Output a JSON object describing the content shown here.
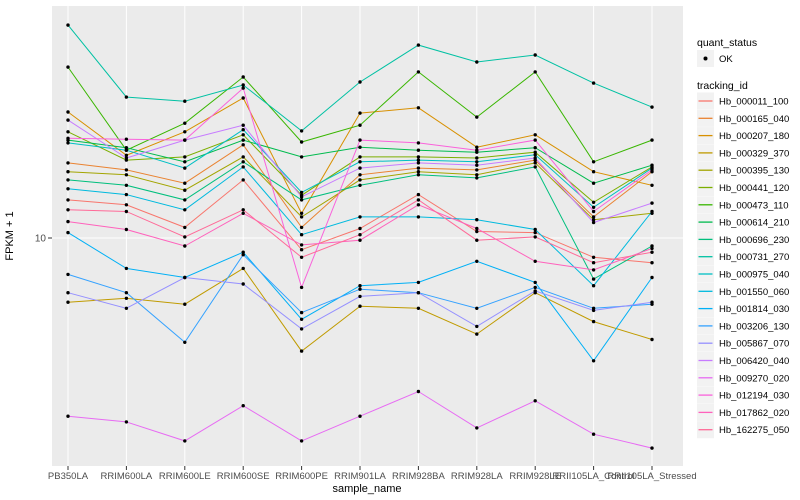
{
  "chart_data": {
    "type": "line",
    "title": "",
    "xlabel": "sample_name",
    "ylabel": "FPKM + 1",
    "y_scale": "log10",
    "y_tick_labels": [
      "10"
    ],
    "y_tick_values": [
      10
    ],
    "ylim": [
      1.4,
      75
    ],
    "grid": "major-only",
    "legend_position": "right",
    "categories": [
      "PB350LA",
      "RRIM600LA",
      "RRIM600LE",
      "RRIM600SE",
      "RRIM600PE",
      "RRIM901LA",
      "RRIM928BA",
      "RRIM928LA",
      "RRIM928LE",
      "RRII105LA_Control",
      "RRII105LA_Stressed"
    ],
    "series": [
      {
        "name": "Hb_000011_100",
        "color": "#F8766D",
        "values": [
          14.1,
          13.5,
          11.0,
          16.9,
          9.0,
          10.9,
          14.8,
          10.6,
          10.5,
          8.4,
          8.0
        ]
      },
      {
        "name": "Hb_000165_040",
        "color": "#EA8331",
        "values": [
          19.7,
          18.5,
          16.4,
          23.2,
          11.0,
          17.7,
          18.8,
          18.5,
          20.2,
          12.1,
          18.2
        ]
      },
      {
        "name": "Hb_000207_180",
        "color": "#D89000",
        "values": [
          31.2,
          21.1,
          26.1,
          35.4,
          12.5,
          30.9,
          32.4,
          22.7,
          25.4,
          18.2,
          16.1
        ]
      },
      {
        "name": "Hb_000329_370",
        "color": "#C09B00",
        "values": [
          5.6,
          5.8,
          5.5,
          7.6,
          3.6,
          5.4,
          5.3,
          4.2,
          6.1,
          4.7,
          4.0
        ]
      },
      {
        "name": "Hb_000395_130",
        "color": "#A3A500",
        "values": [
          18.2,
          17.7,
          15.4,
          20.8,
          12.1,
          16.9,
          18.2,
          17.7,
          19.7,
          11.8,
          12.5
        ]
      },
      {
        "name": "Hb_000441_120",
        "color": "#7CAE00",
        "values": [
          26.1,
          20.2,
          20.8,
          25.4,
          14.7,
          20.8,
          20.8,
          20.6,
          21.7,
          13.8,
          19.0
        ]
      },
      {
        "name": "Hb_000473_110",
        "color": "#39B600",
        "values": [
          46.8,
          22.1,
          28.2,
          42.8,
          23.8,
          27.7,
          44.8,
          29.8,
          44.8,
          19.9,
          24.2
        ]
      },
      {
        "name": "Hb_000614_210",
        "color": "#00BB4E",
        "values": [
          24.2,
          22.6,
          19.9,
          24.2,
          20.8,
          22.7,
          22.1,
          21.7,
          22.6,
          16.4,
          19.3
        ]
      },
      {
        "name": "Hb_000696_230",
        "color": "#00BF7D",
        "values": [
          16.9,
          16.1,
          14.1,
          19.9,
          14.1,
          16.1,
          17.7,
          17.2,
          19.0,
          6.9,
          9.3
        ]
      },
      {
        "name": "Hb_000731_270",
        "color": "#00C1A3",
        "values": [
          68.4,
          35.7,
          34.4,
          39.8,
          26.3,
          40.9,
          57.1,
          49.0,
          52.2,
          40.5,
          32.6
        ]
      },
      {
        "name": "Hb_000975_040",
        "color": "#00BFC4",
        "values": [
          23.6,
          22.1,
          18.8,
          26.6,
          15.1,
          19.9,
          20.2,
          19.9,
          21.2,
          13.2,
          18.8
        ]
      },
      {
        "name": "Hb_001550_060",
        "color": "#00BADE",
        "values": [
          15.6,
          14.8,
          12.9,
          19.0,
          10.3,
          12.1,
          12.1,
          11.8,
          10.8,
          6.5,
          12.7
        ]
      },
      {
        "name": "Hb_001814_030",
        "color": "#00B0F6",
        "values": [
          10.5,
          7.6,
          7.0,
          8.8,
          4.8,
          6.5,
          6.7,
          8.1,
          6.7,
          3.3,
          7.0
        ]
      },
      {
        "name": "Hb_003206_130",
        "color": "#35A2FF",
        "values": [
          7.2,
          6.1,
          3.9,
          8.6,
          5.1,
          6.3,
          6.1,
          5.3,
          6.4,
          5.3,
          5.5
        ]
      },
      {
        "name": "Hb_005867_070",
        "color": "#9590FF",
        "values": [
          6.1,
          5.3,
          7.0,
          6.6,
          4.4,
          5.9,
          6.1,
          4.5,
          6.2,
          5.2,
          5.6
        ]
      },
      {
        "name": "Hb_006420_040",
        "color": "#C77CFF",
        "values": [
          29.0,
          20.6,
          24.2,
          27.7,
          14.5,
          18.8,
          19.7,
          19.3,
          20.6,
          11.5,
          13.7
        ]
      },
      {
        "name": "Hb_009270_020",
        "color": "#E76BF3",
        "values": [
          2.0,
          1.9,
          1.6,
          2.2,
          1.6,
          2.0,
          2.5,
          1.8,
          2.3,
          1.7,
          1.5
        ]
      },
      {
        "name": "Hb_012194_030",
        "color": "#FA62DB",
        "values": [
          24.6,
          24.4,
          24.2,
          38.7,
          6.4,
          24.2,
          23.6,
          22.1,
          24.2,
          12.7,
          18.5
        ]
      },
      {
        "name": "Hb_017862_020",
        "color": "#FF62BC",
        "values": [
          11.6,
          10.8,
          9.3,
          12.5,
          9.4,
          9.8,
          13.5,
          10.9,
          8.1,
          7.5,
          9.1
        ]
      },
      {
        "name": "Hb_162275_050",
        "color": "#FF6A98",
        "values": [
          12.9,
          12.7,
          10.1,
          12.9,
          8.4,
          10.3,
          14.1,
          9.8,
          10.1,
          8.0,
          8.8
        ]
      }
    ],
    "legend": {
      "quant_status_title": "quant_status",
      "quant_status_items": [
        "OK"
      ],
      "tracking_id_title": "tracking_id"
    },
    "style": {
      "panel_bg": "#EBEBEB",
      "grid_color": "#FFFFFF",
      "point_color": "#000000",
      "axis_text_color": "#4D4D4D",
      "axis_title_color": "#000000",
      "legend_key_bg": "#F2F2F2"
    }
  }
}
